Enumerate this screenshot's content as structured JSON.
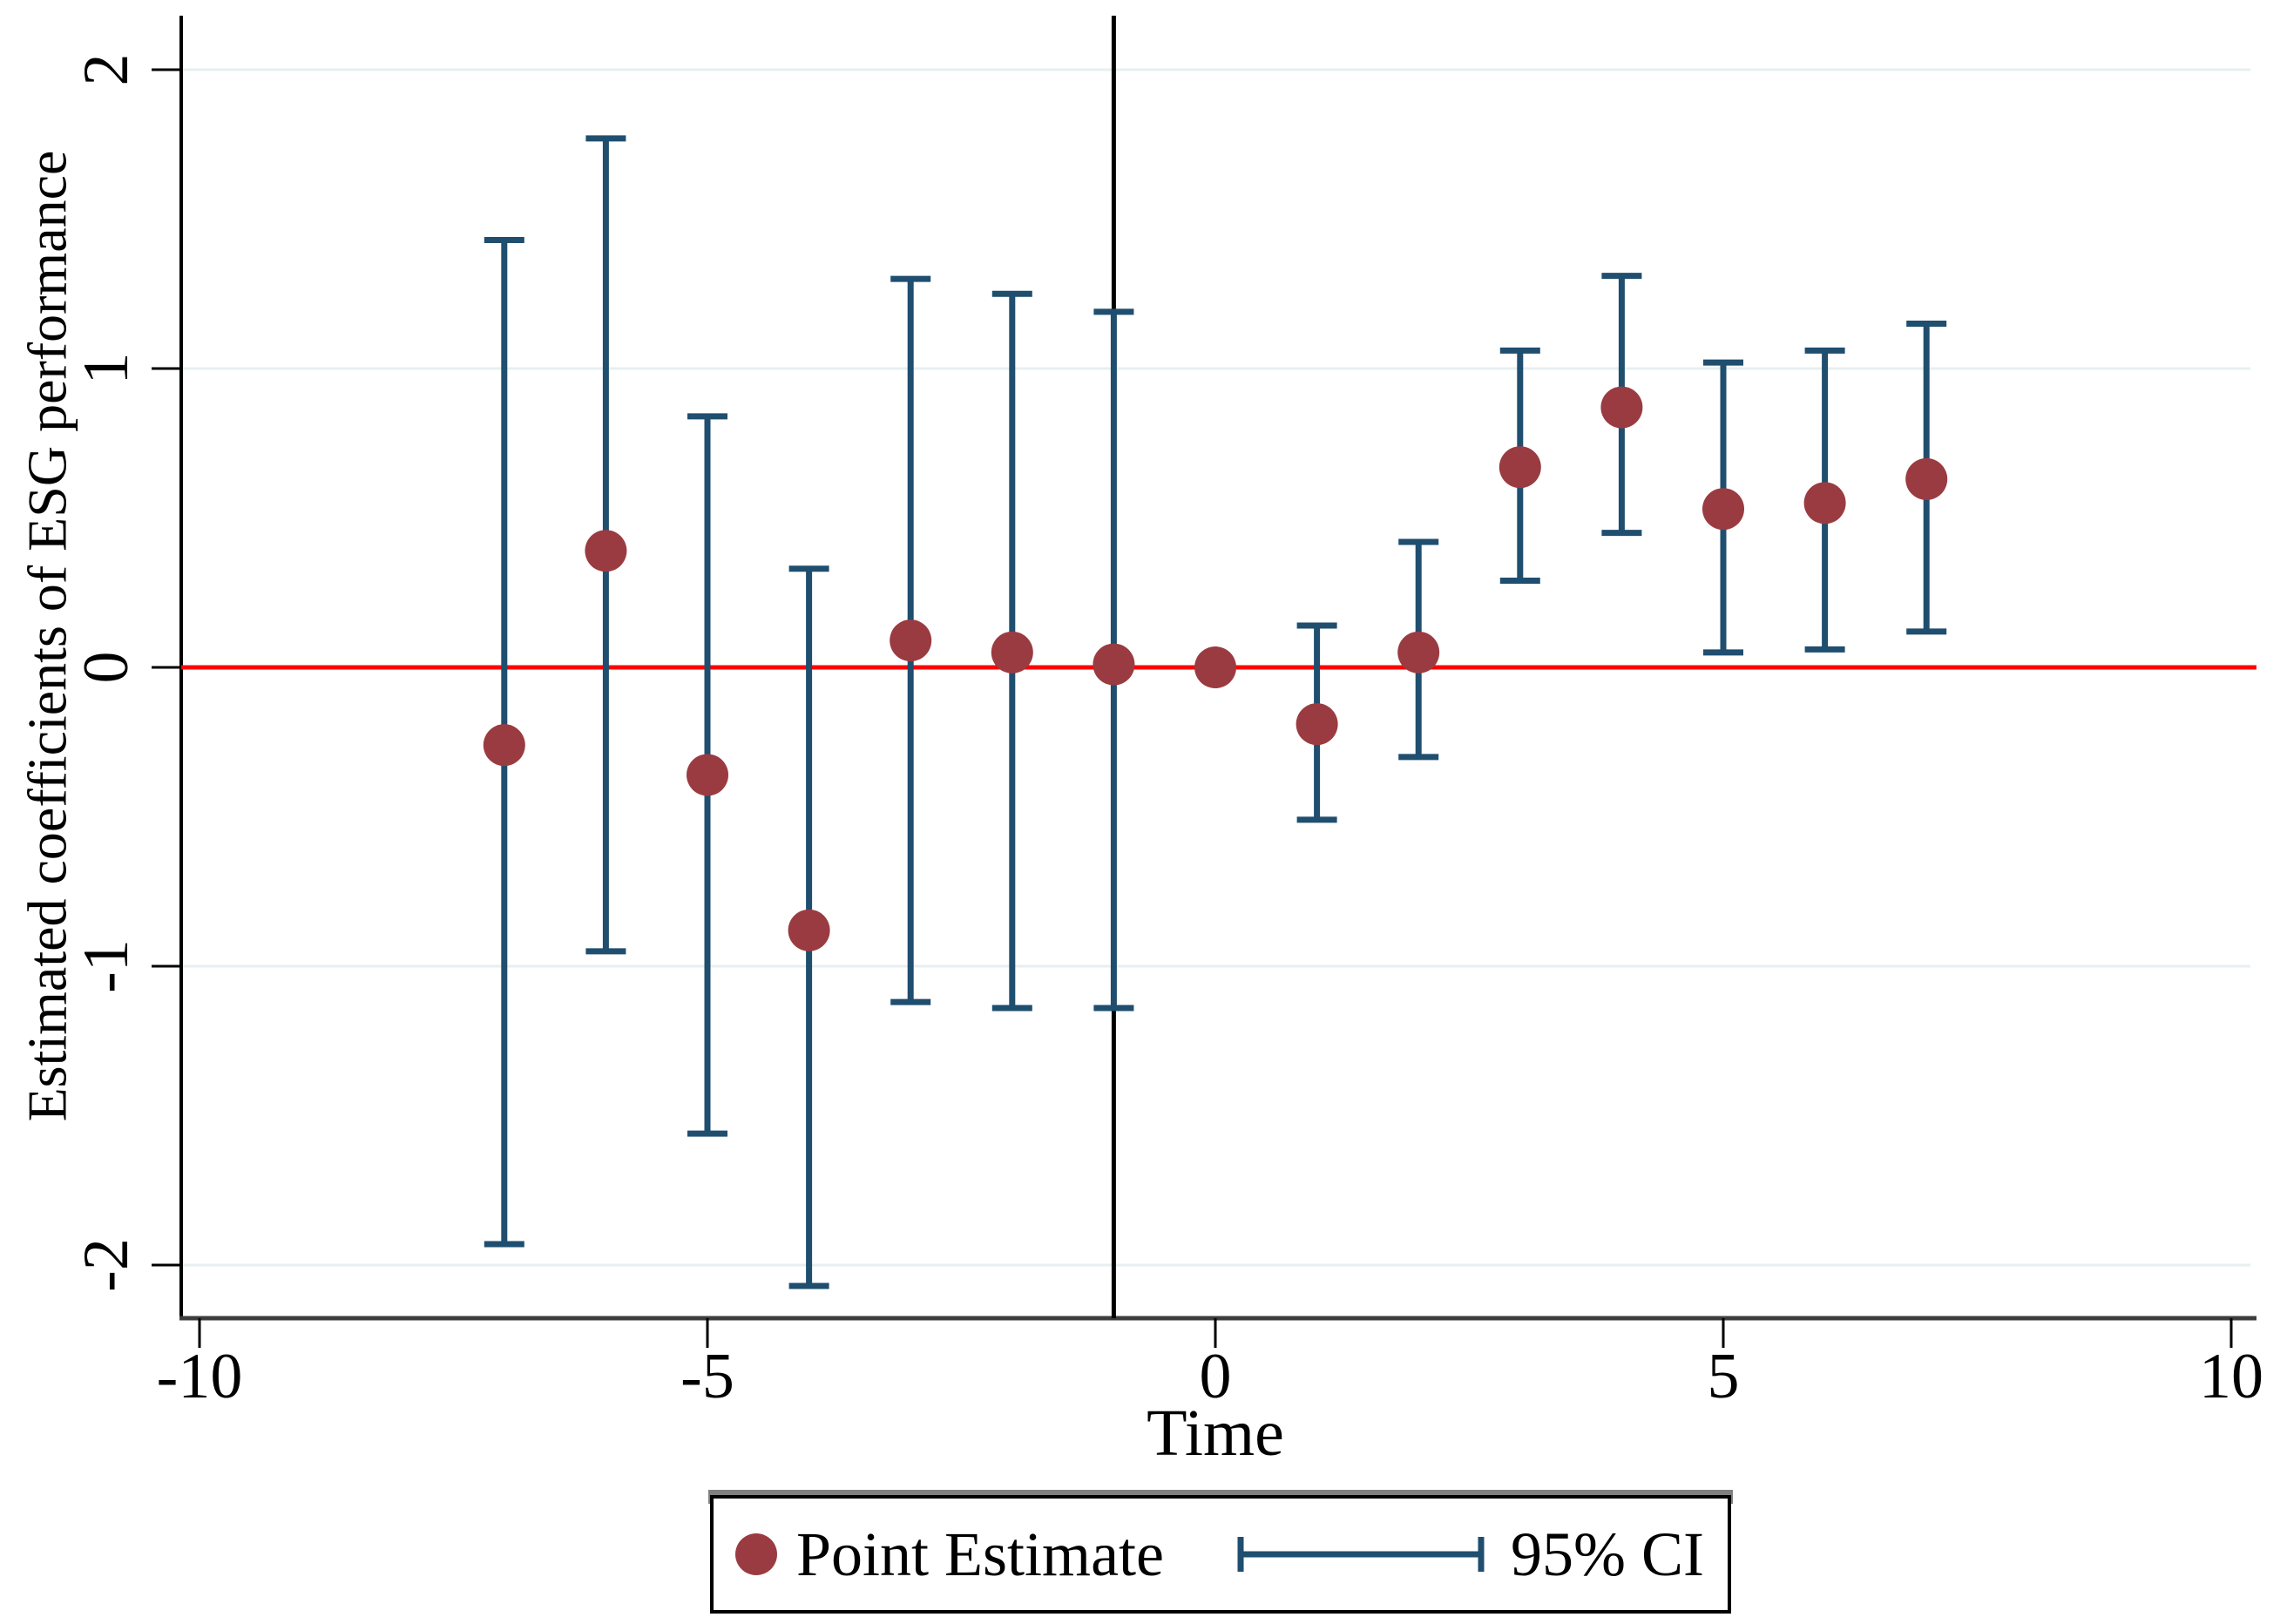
{
  "chart_data": {
    "type": "scatter",
    "subtype": "event-study-errorbar",
    "title": "",
    "xlabel": "Time",
    "ylabel": "Estimated coefficients of ESG performance",
    "x_ticks": [
      -10,
      -5,
      0,
      5,
      10
    ],
    "y_ticks": [
      2,
      1,
      0,
      -1,
      -2
    ],
    "xlim": [
      -10.2,
      10.2
    ],
    "ylim": [
      -2.18,
      2.18
    ],
    "grid": {
      "horizontal": true,
      "vertical": false
    },
    "reference_lines": {
      "horizontal_y": 0,
      "vertical_x": -1
    },
    "series": [
      {
        "name": "Point Estimate",
        "marker": "filled-circle",
        "color": "#9a3b41",
        "points": [
          {
            "t": -7,
            "estimate": -0.26,
            "ci_low": -1.93,
            "ci_high": 1.43
          },
          {
            "t": -6,
            "estimate": 0.39,
            "ci_low": -0.95,
            "ci_high": 1.77
          },
          {
            "t": -5,
            "estimate": -0.36,
            "ci_low": -1.56,
            "ci_high": 0.84
          },
          {
            "t": -4,
            "estimate": -0.88,
            "ci_low": -2.07,
            "ci_high": 0.33
          },
          {
            "t": -3,
            "estimate": 0.09,
            "ci_low": -1.12,
            "ci_high": 1.3
          },
          {
            "t": -2,
            "estimate": 0.05,
            "ci_low": -1.14,
            "ci_high": 1.25
          },
          {
            "t": -1,
            "estimate": 0.01,
            "ci_low": -1.14,
            "ci_high": 1.19
          },
          {
            "t": 0,
            "estimate": 0.0,
            "ci_low": null,
            "ci_high": null
          },
          {
            "t": 1,
            "estimate": -0.19,
            "ci_low": -0.51,
            "ci_high": 0.14
          },
          {
            "t": 2,
            "estimate": 0.05,
            "ci_low": -0.3,
            "ci_high": 0.42
          },
          {
            "t": 3,
            "estimate": 0.67,
            "ci_low": 0.29,
            "ci_high": 1.06
          },
          {
            "t": 4,
            "estimate": 0.87,
            "ci_low": 0.45,
            "ci_high": 1.31
          },
          {
            "t": 5,
            "estimate": 0.53,
            "ci_low": 0.05,
            "ci_high": 1.02
          },
          {
            "t": 6,
            "estimate": 0.55,
            "ci_low": 0.06,
            "ci_high": 1.06
          },
          {
            "t": 7,
            "estimate": 0.63,
            "ci_low": 0.12,
            "ci_high": 1.15
          }
        ]
      },
      {
        "name": "95% CI",
        "type": "error-bar",
        "color": "#1f4e6f"
      }
    ],
    "colors": {
      "marker": "#9a3b41",
      "ci": "#1f4e6f",
      "zero_line": "#fe0000",
      "event_line": "#000000",
      "gridline": "#e7eff2",
      "y_axis_line": "#000000",
      "x_axis_line": "#3d3d3d",
      "tick": "#000000",
      "legend_border": "#000000",
      "legend_shadow": "#808080",
      "background": "#ffffff"
    },
    "legend": {
      "position": "bottom-center",
      "items": [
        {
          "label": "Point Estimate",
          "symbol": "filled-circle",
          "color": "#9a3b41"
        },
        {
          "label": "95% CI",
          "symbol": "horizontal-error-bar",
          "color": "#1f4e6f"
        }
      ]
    }
  }
}
